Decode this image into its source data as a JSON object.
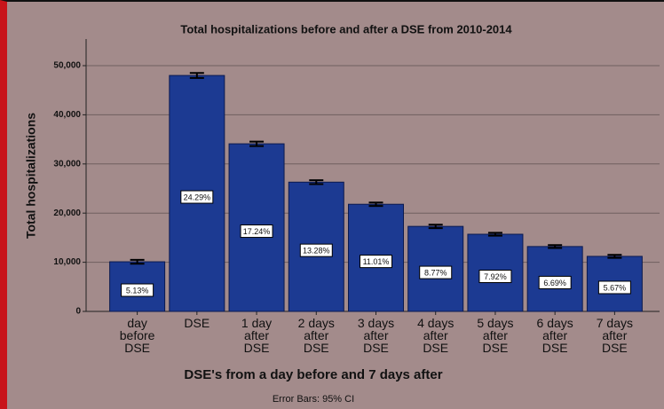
{
  "chart_data": {
    "type": "bar",
    "title": "Total hospitalizations before and after a DSE from 2010-2014",
    "x_label": "DSE's from a day before and 7 days after",
    "y_label": "Total hospitalizations",
    "footnote": "Error Bars: 95% CI",
    "categories": [
      "day before DSE",
      "DSE",
      "1 day after DSE",
      "2 days after DSE",
      "3 days after DSE",
      "4 days after DSE",
      "5 days after DSE",
      "6 days after DSE",
      "7 days after DSE"
    ],
    "values": [
      10100,
      48000,
      34100,
      26300,
      21800,
      17300,
      15700,
      13200,
      11200
    ],
    "errors": [
      400,
      500,
      450,
      400,
      350,
      350,
      300,
      300,
      300
    ],
    "percent_labels": [
      "5.13%",
      "24.29%",
      "17.24%",
      "13.28%",
      "11.01%",
      "8.77%",
      "7.92%",
      "6.69%",
      "5.67%"
    ],
    "color": "#1c3a92",
    "ylim": [
      0,
      50000
    ],
    "yticks": [
      0,
      {
        "value": 10000,
        "label": "10,000"
      },
      {
        "value": 20000,
        "label": "20,000"
      },
      {
        "value": 30000,
        "label": "30,000"
      },
      {
        "value": 40000,
        "label": "40,000"
      },
      {
        "value": 50000,
        "label": "50,000"
      }
    ],
    "grid": true
  }
}
